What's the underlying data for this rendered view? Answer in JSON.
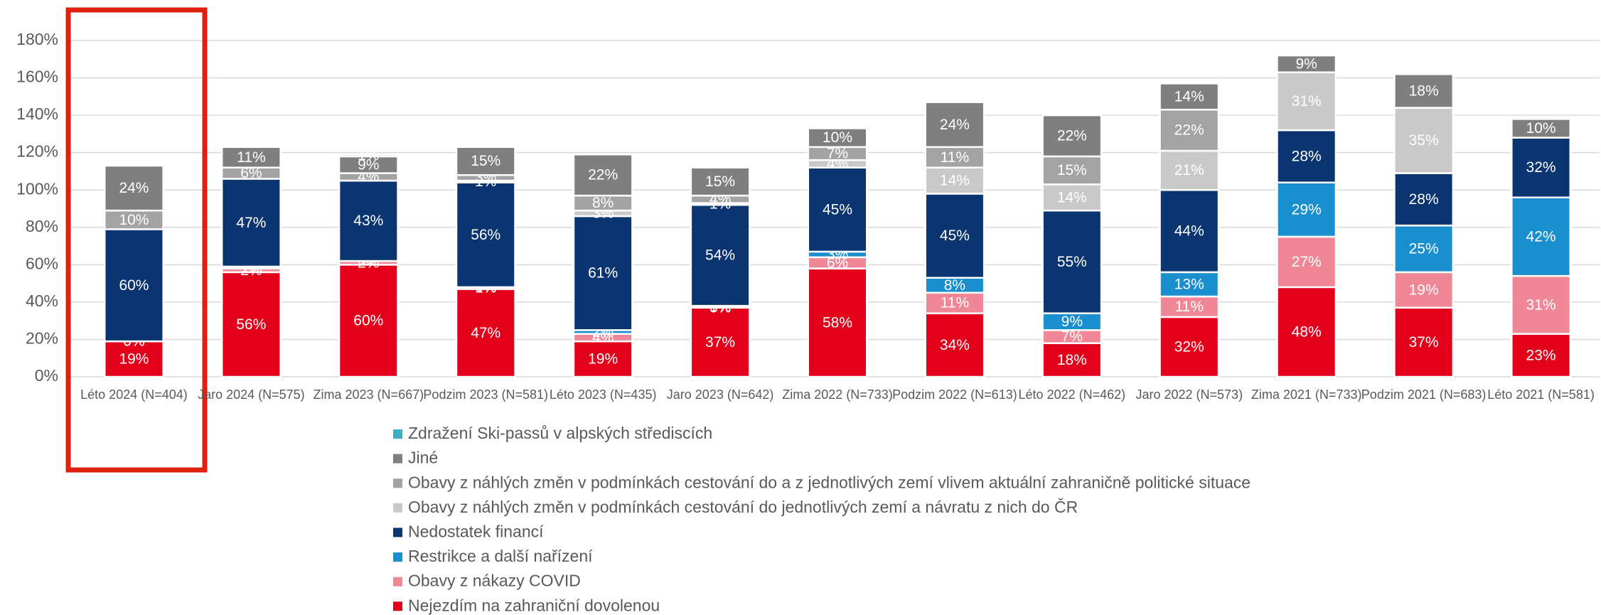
{
  "chart_data": {
    "type": "stacked-bar",
    "categories": [
      "Léto 2024 (N=404)",
      "Jaro 2024 (N=575)",
      "Zima 2023 (N=667)",
      "Podzim 2023 (N=581)",
      "Léto 2023 (N=435)",
      "Jaro 2023 (N=642)",
      "Zima 2022 (N=733)",
      "Podzim 2022 (N=613)",
      "Léto 2022 (N=462)",
      "Jaro 2022 (N=573)",
      "Zima 2021 (N=733)",
      "Podzim 2021 (N=683)",
      "Léto 2021 (N=581)"
    ],
    "series": [
      {
        "name": "Nejezdím na zahraniční dovolenou",
        "color": "#e2001a",
        "values": [
          19,
          56,
          60,
          47,
          19,
          37,
          58,
          34,
          18,
          32,
          48,
          37,
          23
        ],
        "value_labels": [
          "19%",
          "56%",
          "60%",
          "47%",
          "19%",
          "37%",
          "58%",
          "34%",
          "18%",
          "32%",
          "48%",
          "37%",
          "23%"
        ]
      },
      {
        "name": "Obavy z nákazy COVID",
        "color": "#f08796",
        "values": [
          0,
          2,
          2,
          1,
          4,
          0,
          6,
          11,
          7,
          11,
          27,
          19,
          31
        ],
        "value_labels": [
          "0%",
          "2%",
          "2%",
          "1%",
          "4%",
          "0%",
          "6%",
          "11%",
          "7%",
          "11%",
          "27%",
          "19%",
          "31%"
        ]
      },
      {
        "name": "Restrikce a další nařízení",
        "color": "#1a8fd0",
        "values": [
          0,
          1,
          0,
          0,
          2,
          1,
          3,
          8,
          9,
          13,
          29,
          25,
          42
        ],
        "value_labels": [
          "0%",
          "1%",
          "0%",
          "0%",
          "2%",
          "1%",
          "3%",
          "8%",
          "9%",
          "13%",
          "29%",
          "25%",
          "42%"
        ]
      },
      {
        "name": "Nedostatek financí",
        "color": "#0a3570",
        "values": [
          60,
          47,
          43,
          56,
          61,
          54,
          45,
          45,
          55,
          44,
          28,
          28,
          32
        ],
        "value_labels": [
          "60%",
          "47%",
          "43%",
          "56%",
          "61%",
          "54%",
          "45%",
          "45%",
          "55%",
          "44%",
          "28%",
          "28%",
          "32%"
        ]
      },
      {
        "name": "Obavy z náhlých změn v podmínkách cestování do jednotlivých zemí a návratu z nich do ČR",
        "color": "#c9c9c9",
        "values": [
          null,
          null,
          null,
          1,
          3,
          1,
          4,
          14,
          14,
          21,
          31,
          35,
          null
        ],
        "value_labels": [
          null,
          null,
          null,
          "1%",
          "3%",
          "1%",
          "4%",
          "14%",
          "14%",
          "21%",
          "31%",
          "35%",
          null
        ]
      },
      {
        "name": "Obavy z náhlých změn v podmínkách cestování do a z jednotlivých zemí vlivem aktuální zahraničně politické situace",
        "color": "#a3a3a3",
        "values": [
          10,
          6,
          4,
          3,
          8,
          4,
          7,
          11,
          15,
          22,
          null,
          null,
          null
        ],
        "value_labels": [
          "10%",
          "6%",
          "4%",
          "3%",
          "8%",
          "4%",
          "7%",
          "11%",
          "15%",
          "22%",
          null,
          null,
          null
        ]
      },
      {
        "name": "Jiné",
        "color": "#7f7f7f",
        "values": [
          24,
          11,
          9,
          15,
          22,
          15,
          10,
          24,
          22,
          14,
          9,
          18,
          10
        ],
        "value_labels": [
          "24%",
          "11%",
          "9%",
          "15%",
          "22%",
          "15%",
          "10%",
          "24%",
          "22%",
          "14%",
          "9%",
          "18%",
          "10%"
        ]
      },
      {
        "name": "Zdražení Ski-passů v alpských střediscích",
        "color": "#3ab0c0",
        "values": [
          null,
          null,
          1,
          null,
          null,
          null,
          null,
          null,
          null,
          null,
          null,
          null,
          null
        ],
        "value_labels": [
          null,
          null,
          "1%",
          null,
          null,
          null,
          null,
          null,
          null,
          null,
          null,
          null,
          null
        ]
      }
    ],
    "ylim": [
      0,
      180
    ],
    "yticks": [
      {
        "value": 0,
        "label": "0%"
      },
      {
        "value": 20,
        "label": "20%"
      },
      {
        "value": 40,
        "label": "40%"
      },
      {
        "value": 60,
        "label": "60%"
      },
      {
        "value": 80,
        "label": "80%"
      },
      {
        "value": 100,
        "label": "100%"
      },
      {
        "value": 120,
        "label": "120%"
      },
      {
        "value": 140,
        "label": "140%"
      },
      {
        "value": 160,
        "label": "160%"
      },
      {
        "value": 180,
        "label": "180%"
      }
    ],
    "grid": true
  }
}
